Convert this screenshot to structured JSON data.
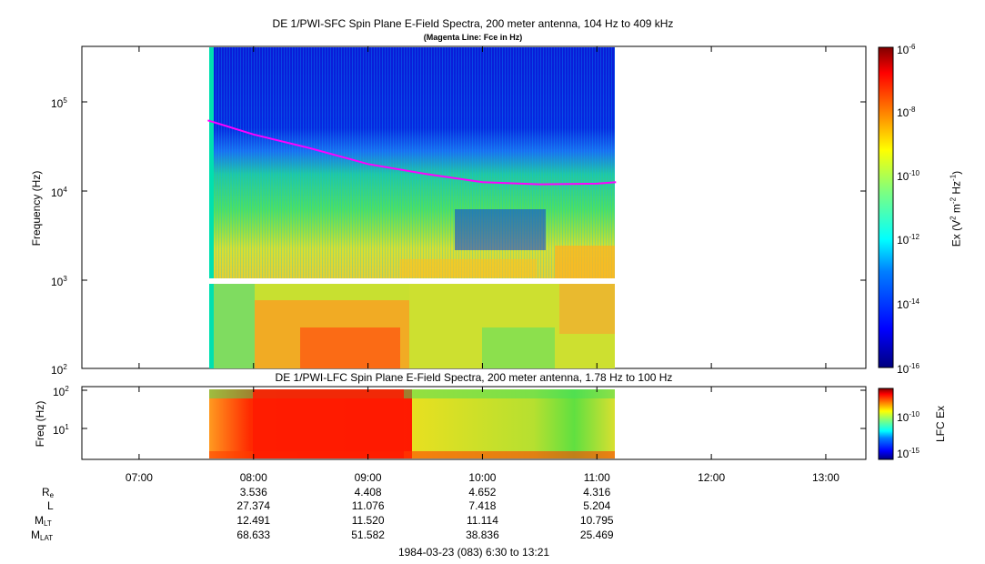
{
  "title": "DE 1/PWI-SFC  Spin Plane E-Field Spectra, 200 meter antenna, 104 Hz to 409 kHz",
  "subtitle": "(Magenta Line: Fce in Hz)",
  "panel2_title": "DE 1/PWI-LFC  Spin Plane E-Field Spectra, 200 meter antenna, 1.78 Hz to 100 Hz",
  "footer": "1984-03-23 (083) 6:30 to 13:21",
  "colors": {
    "fce_line": "#ff00ff",
    "colormap": [
      "#00007f",
      "#0000ff",
      "#007fff",
      "#00ffff",
      "#7fff7f",
      "#ffff00",
      "#ff7f00",
      "#ff0000",
      "#7f0000"
    ]
  },
  "chart_data": [
    {
      "type": "heatmap",
      "title": "DE 1/PWI-SFC  Spin Plane E-Field Spectra, 200 meter antenna, 104 Hz to 409 kHz",
      "subtitle": "(Magenta Line: Fce in Hz)",
      "xlabel": "",
      "ylabel": "Frequency (Hz)",
      "yscale": "log",
      "ylim": [
        100,
        409000
      ],
      "xlim": [
        "06:30",
        "13:21"
      ],
      "data_span": [
        "07:36",
        "11:10"
      ],
      "ytick_labels": [
        "10^2",
        "10^3",
        "10^4",
        "10^5"
      ],
      "colorbar": {
        "label": "Ex (V^2 m^-2 Hz^-1)",
        "scale": "log",
        "range": [
          1e-16,
          1e-06
        ],
        "tick_labels": [
          "10^-6",
          "10^-8",
          "10^-10",
          "10^-12",
          "10^-14",
          "10^-16"
        ]
      },
      "fce_line": {
        "name": "Fce",
        "x": [
          "07:36",
          "08:00",
          "08:30",
          "09:00",
          "09:30",
          "10:00",
          "10:30",
          "11:00",
          "11:10"
        ],
        "y": [
          62000,
          43000,
          30000,
          20000,
          15500,
          12500,
          11800,
          12000,
          12500
        ]
      }
    },
    {
      "type": "heatmap",
      "title": "DE 1/PWI-LFC  Spin Plane E-Field Spectra, 200 meter antenna, 1.78 Hz to 100 Hz",
      "ylabel": "Freq (Hz)",
      "yscale": "log",
      "ylim": [
        1.78,
        100
      ],
      "xlim": [
        "06:30",
        "13:21"
      ],
      "data_span": [
        "07:36",
        "11:10"
      ],
      "ytick_labels": [
        "10^1",
        "10^2"
      ],
      "colorbar": {
        "label": "LFC Ex",
        "scale": "log",
        "tick_labels": [
          "10^-10",
          "10^-15"
        ]
      }
    }
  ],
  "xaxis": {
    "ticks": [
      "07:00",
      "08:00",
      "09:00",
      "10:00",
      "11:00",
      "12:00",
      "13:00"
    ]
  },
  "ephemeris": {
    "rows": [
      {
        "label": "R",
        "sub": "e",
        "values": [
          "3.536",
          "4.408",
          "4.652",
          "4.316"
        ]
      },
      {
        "label": "L",
        "sub": "",
        "values": [
          "27.374",
          "11.076",
          "7.418",
          "5.204"
        ]
      },
      {
        "label": "M",
        "sub": "LT",
        "values": [
          "12.491",
          "11.520",
          "11.114",
          "10.795"
        ]
      },
      {
        "label": "M",
        "sub": "LAT",
        "values": [
          "68.633",
          "51.582",
          "38.836",
          "25.469"
        ]
      }
    ]
  }
}
